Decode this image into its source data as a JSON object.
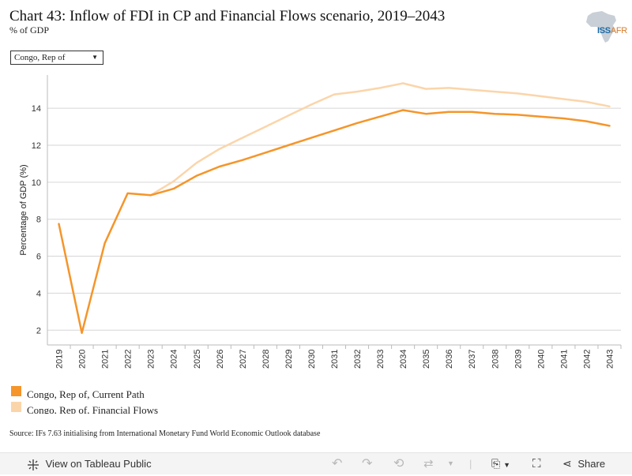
{
  "header": {
    "title": "Chart 43: Inflow of FDI in CP and Financial Flows scenario, 2019–2043",
    "subtitle": "% of GDP"
  },
  "logo": {
    "text": "ISS",
    "text_suffix": "AFR"
  },
  "filter": {
    "selected": "Congo, Rep of"
  },
  "legend": {
    "items": [
      {
        "label": "Congo, Rep of, Current Path",
        "color": "#f5952a"
      },
      {
        "label": "Congo, Rep of, Financial Flows",
        "color": "#fbd5aa"
      }
    ]
  },
  "source": "Source: IFs 7.63 initialising from International Monetary Fund World Economic Outlook database",
  "toolbar": {
    "view_label": "View on Tableau Public",
    "share_label": "Share"
  },
  "chart_data": {
    "type": "line",
    "title": "Chart 43: Inflow of FDI in CP and Financial Flows scenario, 2019–2043",
    "ylabel": "Percentage of GDP (%)",
    "xlabel": "",
    "ylim": [
      1.2,
      15.8
    ],
    "yticks": [
      2,
      4,
      6,
      8,
      10,
      12,
      14
    ],
    "grid": true,
    "x": [
      "2019",
      "2020",
      "2021",
      "2022",
      "2023",
      "2024",
      "2025",
      "2026",
      "2027",
      "2028",
      "2029",
      "2030",
      "2031",
      "2032",
      "2033",
      "2034",
      "2035",
      "2036",
      "2037",
      "2038",
      "2039",
      "2040",
      "2041",
      "2042",
      "2043"
    ],
    "series": [
      {
        "name": "Congo, Rep of, Current Path",
        "color": "#f5952a",
        "x": [
          "2019",
          "2020",
          "2021",
          "2022",
          "2023",
          "2024",
          "2025",
          "2026",
          "2027",
          "2028",
          "2029",
          "2030",
          "2031",
          "2032",
          "2033",
          "2034",
          "2035",
          "2036",
          "2037",
          "2038",
          "2039",
          "2040",
          "2041",
          "2042",
          "2043"
        ],
        "values": [
          7.75,
          1.85,
          6.7,
          9.4,
          9.3,
          9.65,
          10.35,
          10.85,
          11.2,
          11.6,
          12.0,
          12.4,
          12.8,
          13.2,
          13.55,
          13.9,
          13.7,
          13.8,
          13.8,
          13.7,
          13.65,
          13.55,
          13.45,
          13.3,
          13.05
        ]
      },
      {
        "name": "Congo, Rep of, Financial Flows",
        "color": "#fbd5aa",
        "x": [
          "2023",
          "2024",
          "2025",
          "2026",
          "2027",
          "2028",
          "2029",
          "2030",
          "2031",
          "2032",
          "2033",
          "2034",
          "2035",
          "2036",
          "2037",
          "2038",
          "2039",
          "2040",
          "2041",
          "2042",
          "2043"
        ],
        "values": [
          9.3,
          10.05,
          11.05,
          11.8,
          12.4,
          13.0,
          13.6,
          14.2,
          14.75,
          14.9,
          15.1,
          15.35,
          15.05,
          15.1,
          15.0,
          14.9,
          14.8,
          14.65,
          14.5,
          14.35,
          14.1
        ]
      }
    ]
  }
}
